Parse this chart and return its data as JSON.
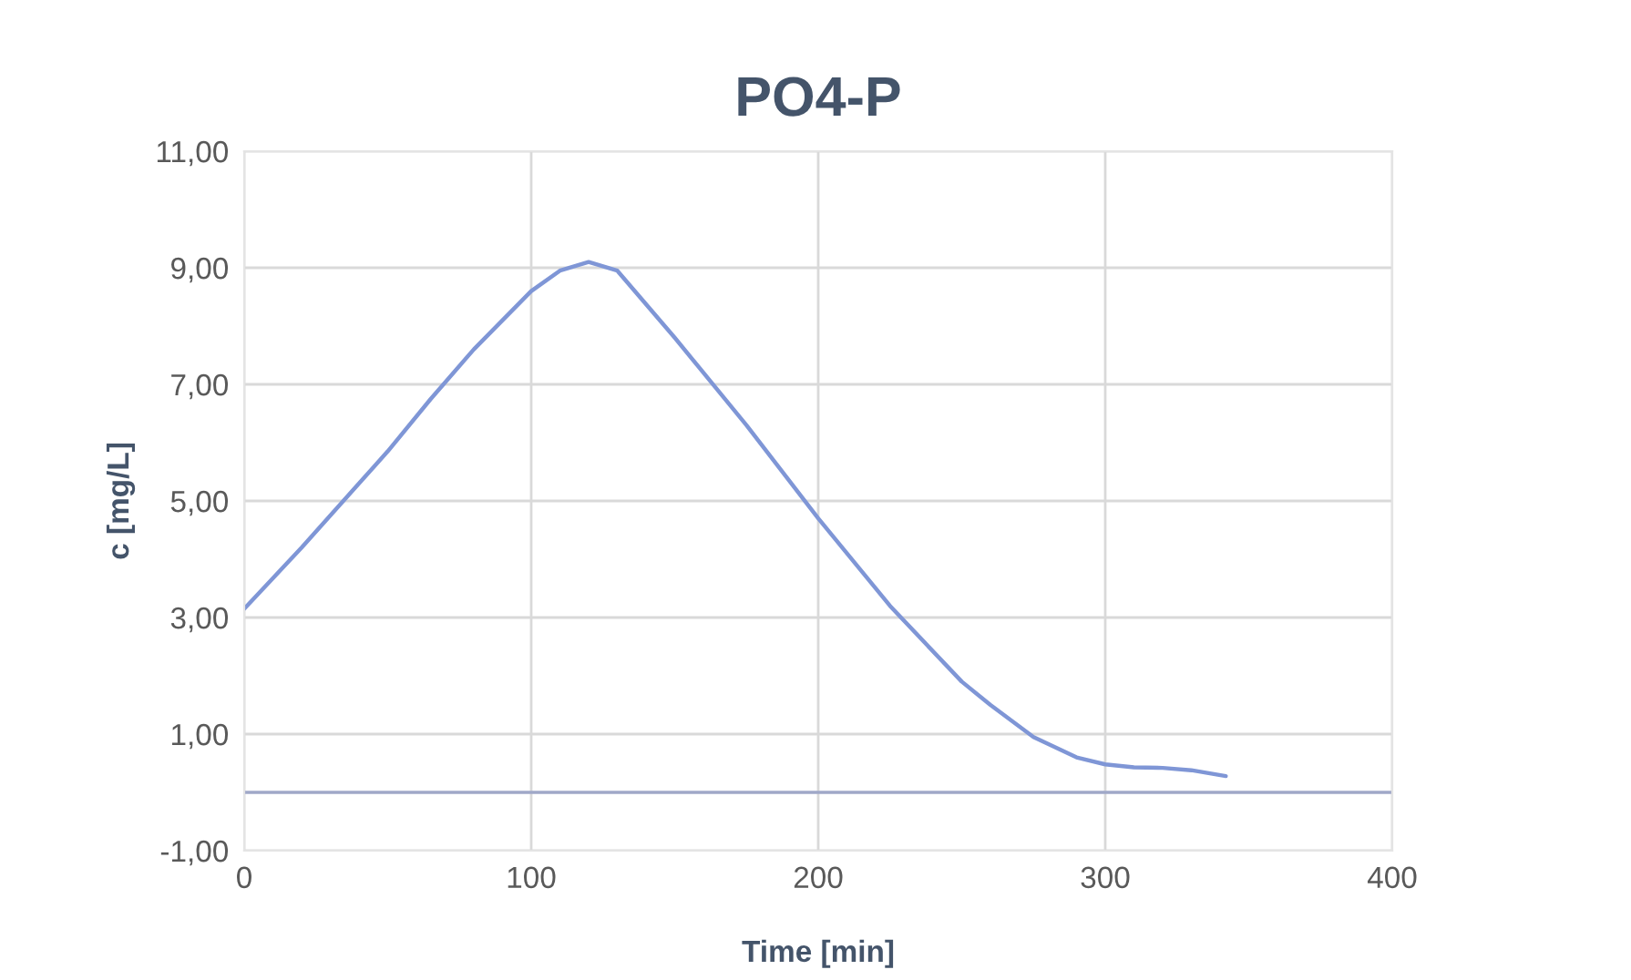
{
  "chart_data": {
    "type": "line",
    "title": "PO4-P",
    "xlabel": "Time [min]",
    "ylabel": "c [mg/L]",
    "series": [
      {
        "color": "#7f96d6",
        "x": [
          0,
          20,
          40,
          50,
          65,
          80,
          100,
          110,
          120,
          130,
          150,
          175,
          200,
          225,
          250,
          260,
          275,
          290,
          300,
          310,
          320,
          330,
          342
        ],
        "values": [
          3.15,
          4.2,
          5.3,
          5.85,
          6.75,
          7.6,
          8.6,
          8.95,
          9.1,
          8.95,
          7.8,
          6.3,
          4.7,
          3.2,
          1.9,
          1.5,
          0.95,
          0.6,
          0.48,
          0.43,
          0.42,
          0.38,
          0.28
        ]
      }
    ],
    "xlim": [
      0,
      400
    ],
    "xticks": [
      0,
      100,
      200,
      300,
      400
    ],
    "ylim": [
      -1,
      11
    ],
    "yticks": [
      {
        "value": -1,
        "label": "-1,00"
      },
      {
        "value": 1,
        "label": "1,00"
      },
      {
        "value": 3,
        "label": "3,00"
      },
      {
        "value": 5,
        "label": "5,00"
      },
      {
        "value": 7,
        "label": "7,00"
      },
      {
        "value": 9,
        "label": "9,00"
      },
      {
        "value": 11,
        "label": "11,00"
      }
    ],
    "grid": true,
    "line_style": "solid",
    "marker": "none",
    "ref_lines": [
      {
        "axis": "y",
        "value": 0,
        "color": "#a0a8c8"
      }
    ]
  }
}
